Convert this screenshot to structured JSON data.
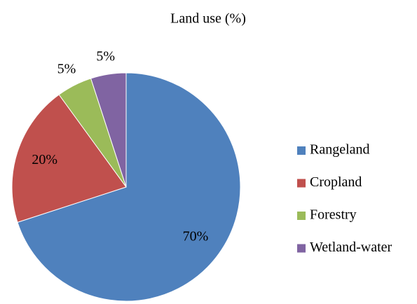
{
  "chart_data": {
    "type": "pie",
    "title": "Land use (%)",
    "categories": [
      "Rangeland",
      "Cropland",
      "Forestry",
      "Wetland-water"
    ],
    "values": [
      70,
      20,
      5,
      5
    ],
    "value_labels": [
      "70%",
      "20%",
      "5%",
      "5%"
    ],
    "colors": [
      "#4f81bd",
      "#c0504d",
      "#9bbb59",
      "#8064a2"
    ],
    "legend": "right"
  }
}
